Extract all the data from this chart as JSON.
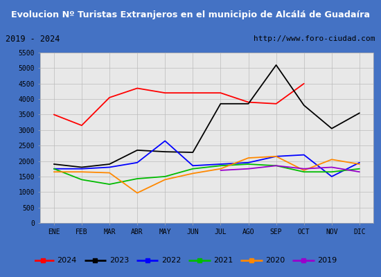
{
  "title": "Evolucion Nº Turistas Extranjeros en el municipio de Alcálá de Guadaíra",
  "subtitle_left": "2019 - 2024",
  "subtitle_right": "http://www.foro-ciudad.com",
  "title_bg": "#4472c4",
  "title_color": "#ffffff",
  "subtitle_bg": "#ffffff",
  "plot_bg": "#e8e8e8",
  "months": [
    "ENE",
    "FEB",
    "MAR",
    "ABR",
    "MAY",
    "JUN",
    "JUL",
    "AGO",
    "SEP",
    "OCT",
    "NOV",
    "DIC"
  ],
  "series": {
    "2024": {
      "color": "#ff0000",
      "values": [
        3500,
        3150,
        4050,
        4350,
        4200,
        4200,
        4200,
        3900,
        3850,
        4500,
        null,
        null
      ]
    },
    "2023": {
      "color": "#000000",
      "values": [
        1900,
        1800,
        1900,
        2350,
        2300,
        2280,
        3850,
        3850,
        5100,
        3800,
        3050,
        3550
      ]
    },
    "2022": {
      "color": "#0000ff",
      "values": [
        1750,
        1750,
        1800,
        1950,
        2650,
        1850,
        1900,
        1950,
        2150,
        2200,
        1500,
        1950
      ]
    },
    "2021": {
      "color": "#00bb00",
      "values": [
        1750,
        1400,
        1250,
        1430,
        1500,
        1750,
        1850,
        1900,
        1850,
        1650,
        1650,
        1750
      ]
    },
    "2020": {
      "color": "#ff8800",
      "values": [
        1650,
        1650,
        1620,
        970,
        1400,
        1600,
        1750,
        2100,
        2150,
        1700,
        2050,
        1900
      ]
    },
    "2019": {
      "color": "#9900cc",
      "values": [
        null,
        null,
        null,
        null,
        null,
        null,
        1700,
        1750,
        1850,
        1750,
        1800,
        1650
      ]
    }
  },
  "ylim": [
    0,
    5500
  ],
  "yticks": [
    0,
    500,
    1000,
    1500,
    2000,
    2500,
    3000,
    3500,
    4000,
    4500,
    5000,
    5500
  ],
  "legend_order": [
    "2024",
    "2023",
    "2022",
    "2021",
    "2020",
    "2019"
  ]
}
